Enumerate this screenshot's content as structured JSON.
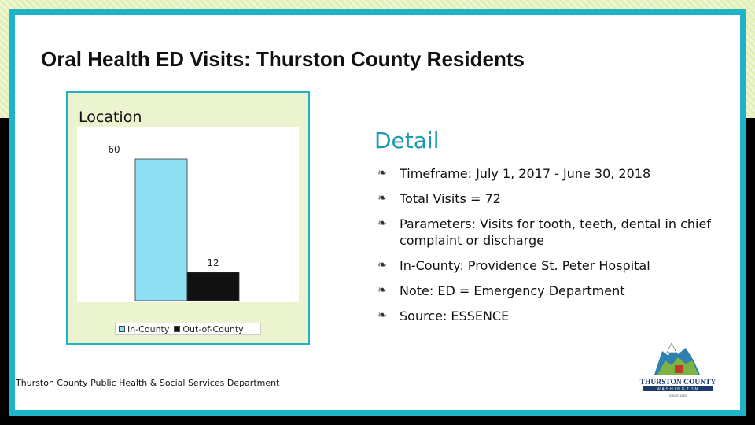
{
  "title": "Oral Health ED Visits: Thurston County Residents",
  "chart_panel_label": "Location",
  "chart_data": {
    "type": "bar",
    "categories": [
      ""
    ],
    "series": [
      {
        "name": "In-County",
        "values": [
          60
        ],
        "color": "#8fe0f2"
      },
      {
        "name": "Out-of-County",
        "values": [
          12
        ],
        "color": "#111111"
      }
    ],
    "data_labels": [
      "60",
      "12"
    ],
    "ylim": [
      0,
      70
    ],
    "grid": false,
    "legend_position": "bottom"
  },
  "footer": "Thurston County Public Health & Social Services Department",
  "detail": {
    "heading": "Detail",
    "bullet_icon": "leaf-bullet-icon",
    "items": [
      "Timeframe: July 1, 2017 - June 30, 2018",
      "Total Visits = 72",
      "Parameters: Visits for tooth, teeth, dental in chief complaint or discharge",
      "In-County: Providence St. Peter Hospital",
      "Note: ED = Emergency Department",
      "Source: ESSENCE"
    ]
  },
  "logo": {
    "text": "THURSTON COUNTY",
    "subtext": "WASHINGTON",
    "since": "SINCE 1852"
  },
  "colors": {
    "frame": "#1fb3c7",
    "accent_heading": "#1a9bb0",
    "panel_bg": "#ecf3cf"
  }
}
